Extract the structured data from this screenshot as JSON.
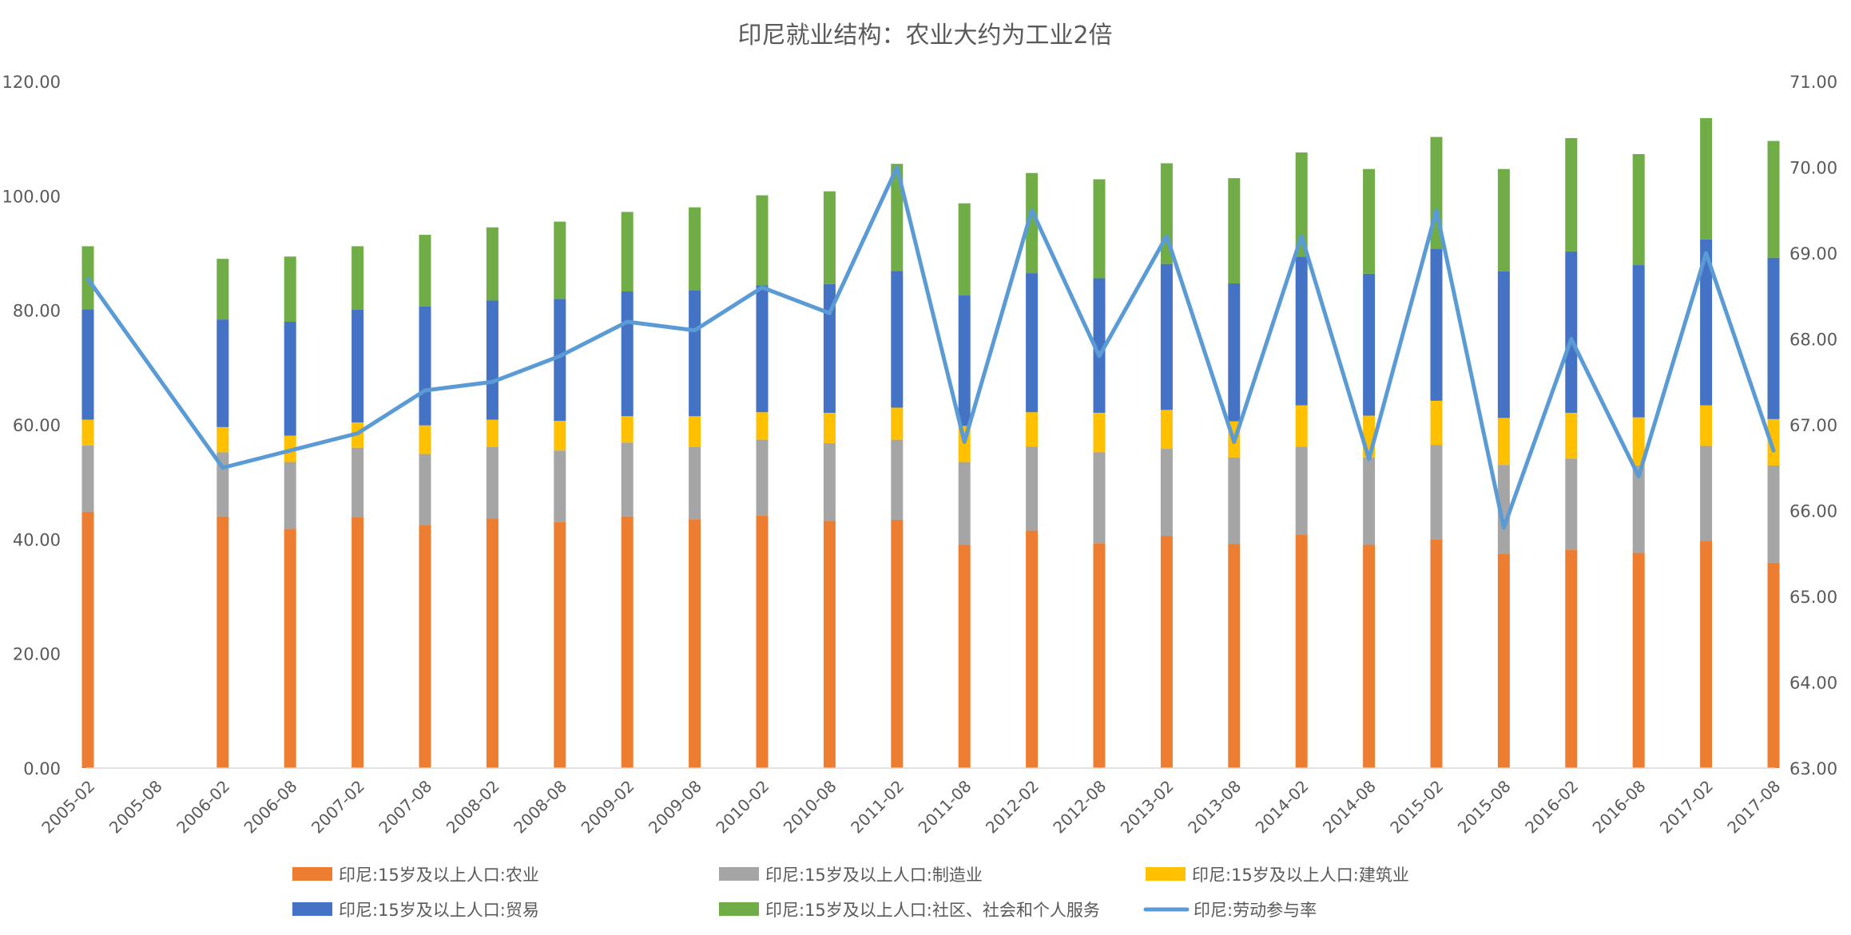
{
  "chart_data": {
    "type": "bar",
    "stacked": true,
    "title": "印尼就业结构：农业大约为工业2倍",
    "categories": [
      "2005-02",
      "2005-08",
      "2006-02",
      "2006-08",
      "2007-02",
      "2007-08",
      "2008-02",
      "2008-08",
      "2009-02",
      "2009-08",
      "2010-02",
      "2010-08",
      "2011-02",
      "2011-08",
      "2012-02",
      "2012-08",
      "2013-02",
      "2013-08",
      "2014-02",
      "2014-08",
      "2015-02",
      "2015-08",
      "2016-02",
      "2016-08",
      "2017-02",
      "2017-08"
    ],
    "y_left": {
      "ylim": [
        0,
        120
      ],
      "ticks": [
        "0.00",
        "20.00",
        "40.00",
        "60.00",
        "80.00",
        "100.00",
        "120.00"
      ]
    },
    "y_right": {
      "ylim": [
        63,
        71
      ],
      "ticks": [
        "63.00",
        "64.00",
        "65.00",
        "66.00",
        "67.00",
        "68.00",
        "69.00",
        "70.00",
        "71.00"
      ]
    },
    "grid": false,
    "legend_position": "bottom",
    "series": [
      {
        "name": "印尼:15岁及以上人口:农业",
        "color": "#ED7D31",
        "axis": "left",
        "kind": "bar",
        "values": [
          44.8,
          null,
          44.0,
          41.8,
          43.9,
          42.5,
          43.6,
          43.0,
          44.0,
          43.5,
          44.1,
          43.2,
          43.4,
          39.0,
          41.5,
          39.3,
          40.6,
          39.2,
          40.8,
          39.0,
          40.0,
          37.5,
          38.2,
          37.6,
          39.7,
          35.9
        ]
      },
      {
        "name": "印尼:15岁及以上人口:制造业",
        "color": "#A5A5A5",
        "axis": "left",
        "kind": "bar",
        "values": [
          11.6,
          null,
          11.2,
          11.7,
          12.1,
          12.4,
          12.5,
          12.5,
          12.9,
          12.6,
          13.3,
          13.6,
          14.0,
          14.5,
          14.7,
          15.9,
          15.2,
          15.1,
          15.4,
          15.3,
          16.5,
          15.5,
          15.9,
          15.3,
          16.6,
          17.0
        ]
      },
      {
        "name": "印尼:15岁及以上人口:建筑业",
        "color": "#FFC000",
        "axis": "left",
        "kind": "bar",
        "values": [
          4.5,
          null,
          4.4,
          4.6,
          4.4,
          5.0,
          4.8,
          5.2,
          4.6,
          5.4,
          4.8,
          5.3,
          5.6,
          6.3,
          6.0,
          6.9,
          6.8,
          6.3,
          7.2,
          7.3,
          7.7,
          8.2,
          8.0,
          8.4,
          7.1,
          8.1
        ]
      },
      {
        "name": "印尼:15岁及以上人口:贸易",
        "color": "#4472C4",
        "axis": "left",
        "kind": "bar",
        "values": [
          19.3,
          null,
          18.8,
          19.9,
          19.7,
          20.8,
          20.8,
          21.3,
          21.8,
          22.0,
          22.2,
          22.5,
          23.9,
          22.8,
          24.3,
          23.5,
          25.5,
          24.1,
          26.0,
          24.8,
          26.6,
          25.6,
          28.2,
          26.6,
          29.0,
          28.2
        ]
      },
      {
        "name": "印尼:15岁及以上人口:社区、社会和个人服务",
        "color": "#70AD47",
        "axis": "left",
        "kind": "bar",
        "values": [
          11.0,
          null,
          10.6,
          11.4,
          11.1,
          12.5,
          12.8,
          13.5,
          13.9,
          14.5,
          15.7,
          16.2,
          18.7,
          16.1,
          17.5,
          17.3,
          17.6,
          18.4,
          18.2,
          18.3,
          19.5,
          17.9,
          19.8,
          19.4,
          21.2,
          20.4
        ]
      },
      {
        "name": "印尼:劳动参与率",
        "color": "#5B9BD5",
        "axis": "right",
        "kind": "line",
        "values": [
          68.7,
          null,
          66.5,
          66.7,
          66.9,
          67.4,
          67.5,
          67.8,
          68.2,
          68.1,
          68.6,
          68.3,
          70.0,
          66.8,
          69.5,
          67.8,
          69.2,
          66.8,
          69.2,
          66.6,
          69.5,
          65.8,
          68.0,
          66.4,
          69.0,
          66.7
        ]
      }
    ]
  }
}
